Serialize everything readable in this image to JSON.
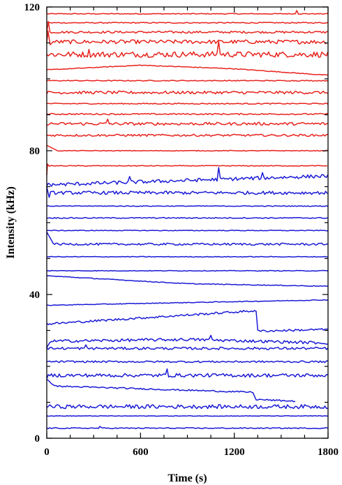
{
  "chart_data": {
    "type": "line",
    "title": "",
    "xlabel": "Time (s)",
    "ylabel": "Intensity (kHz)",
    "xlim": [
      0,
      1800
    ],
    "ylim": [
      0,
      120
    ],
    "xticks": [
      0,
      600,
      1200,
      1800
    ],
    "xtick_labels": [
      "0",
      "600",
      "1200",
      "1800"
    ],
    "yticks": [
      0,
      40,
      80,
      120
    ],
    "ytick_labels": [
      "0",
      "40",
      "80",
      "120"
    ],
    "grid": false,
    "legend": "none",
    "colors": {
      "red": "#e8231d",
      "blue": "#1a1ad6",
      "axis": "#000000"
    },
    "series": [
      {
        "color": "red",
        "base": 118.1,
        "noise": 0.12,
        "x_end": 1800,
        "spikes": [
          [
            1600,
            0.9
          ]
        ]
      },
      {
        "color": "red",
        "base": 115.6,
        "noise": 0.15,
        "x_end": 1800
      },
      {
        "color": "red",
        "base": 113.0,
        "noise": 0.3,
        "x_end": 1800,
        "start": [
          [
            0,
            112.9
          ],
          [
            10,
            116.0
          ]
        ]
      },
      {
        "color": "red",
        "base": 110.3,
        "noise": 0.55,
        "x_end": 1800,
        "start": [
          [
            0,
            110.0
          ],
          [
            8,
            113.3
          ],
          [
            22,
            109.5
          ]
        ]
      },
      {
        "color": "red",
        "base": 106.8,
        "noise": 0.8,
        "x_end": 1800,
        "spikes": [
          [
            1100,
            3.6
          ],
          [
            270,
            1.4
          ]
        ]
      },
      {
        "color": "red",
        "base": 102.5,
        "noise": 0.1,
        "x_end": 1800,
        "points": [
          [
            0,
            102.5
          ],
          [
            600,
            103.8
          ],
          [
            1200,
            102.8
          ],
          [
            1800,
            101.0
          ]
        ]
      },
      {
        "color": "red",
        "base": 99.5,
        "noise": 0.12,
        "x_end": 1800
      },
      {
        "color": "red",
        "base": 96.2,
        "noise": 0.4,
        "x_end": 1800
      },
      {
        "color": "red",
        "base": 93.1,
        "noise": 0.15,
        "x_end": 1800
      },
      {
        "color": "red",
        "base": 90.2,
        "noise": 0.2,
        "x_end": 1800
      },
      {
        "color": "red",
        "base": 87.5,
        "noise": 0.4,
        "x_end": 1800,
        "spikes": [
          [
            390,
            1.3
          ]
        ]
      },
      {
        "color": "red",
        "base": 84.3,
        "noise": 0.3,
        "x_end": 1800
      },
      {
        "color": "red",
        "base": 80.0,
        "noise": 0.1,
        "x_end": 1800,
        "start": [
          [
            0,
            81.5
          ],
          [
            60,
            80.2
          ]
        ]
      },
      {
        "color": "red",
        "base": 75.8,
        "noise": 0.1,
        "x_end": 1800,
        "start": [
          [
            0,
            73.2
          ],
          [
            5,
            76.3
          ]
        ]
      },
      {
        "color": "blue",
        "base": 71.8,
        "noise": 0.5,
        "x_end": 1800,
        "points": [
          [
            0,
            70.5
          ],
          [
            1800,
            73.0
          ]
        ],
        "spikes": [
          [
            1100,
            3.3
          ],
          [
            530,
            1.6
          ],
          [
            1380,
            1.5
          ]
        ]
      },
      {
        "color": "blue",
        "base": 68.3,
        "noise": 0.45,
        "x_end": 1800,
        "start": [
          [
            0,
            70.0
          ],
          [
            15,
            67.0
          ]
        ]
      },
      {
        "color": "blue",
        "base": 64.6,
        "noise": 0.1,
        "x_end": 1800
      },
      {
        "color": "blue",
        "base": 61.3,
        "noise": 0.15,
        "x_end": 1800
      },
      {
        "color": "blue",
        "base": 57.8,
        "noise": 0.1,
        "x_end": 1800
      },
      {
        "color": "blue",
        "base": 54.0,
        "noise": 0.3,
        "x_end": 1800,
        "start": [
          [
            0,
            57.4
          ],
          [
            40,
            54.3
          ]
        ]
      },
      {
        "color": "blue",
        "base": 50.5,
        "noise": 0.1,
        "x_end": 1800
      },
      {
        "color": "blue",
        "base": 46.6,
        "noise": 0.1,
        "x_end": 1800
      },
      {
        "color": "blue",
        "base": 42.5,
        "noise": 0.1,
        "x_end": 1800,
        "points": [
          [
            0,
            45.2
          ],
          [
            900,
            43.0
          ],
          [
            1800,
            42.3
          ]
        ]
      },
      {
        "color": "blue",
        "base": 38.3,
        "noise": 0.1,
        "x_end": 1800,
        "points": [
          [
            0,
            37.0
          ],
          [
            1800,
            38.5
          ]
        ]
      },
      {
        "color": "blue",
        "base": 33.0,
        "noise": 0.3,
        "x_end": 1800,
        "points": [
          [
            0,
            31.8
          ],
          [
            1340,
            35.5
          ],
          [
            1345,
            29.8
          ],
          [
            1800,
            30.3
          ]
        ]
      },
      {
        "color": "blue",
        "base": 27.5,
        "noise": 0.4,
        "x_end": 1800,
        "points": [
          [
            0,
            24.8
          ],
          [
            20,
            27.0
          ],
          [
            900,
            27.5
          ],
          [
            1800,
            26.5
          ]
        ],
        "spikes": [
          [
            1050,
            1.3
          ]
        ]
      },
      {
        "color": "blue",
        "base": 25.0,
        "noise": 0.35,
        "x_end": 1800,
        "spikes": [
          [
            250,
            1.0
          ]
        ]
      },
      {
        "color": "blue",
        "base": 21.3,
        "noise": 0.25,
        "x_end": 1800
      },
      {
        "color": "blue",
        "base": 17.5,
        "noise": 0.5,
        "x_end": 1800,
        "start": [
          [
            0,
            16.5
          ]
        ],
        "spikes": [
          [
            770,
            1.8
          ]
        ]
      },
      {
        "color": "blue",
        "base": 14.0,
        "noise": 0.2,
        "x_end": 1590,
        "points": [
          [
            0,
            16.2
          ],
          [
            60,
            14.5
          ],
          [
            1320,
            12.8
          ],
          [
            1335,
            10.8
          ],
          [
            1590,
            10.3
          ]
        ]
      },
      {
        "color": "blue",
        "base": 8.8,
        "noise": 0.55,
        "x_end": 1800
      },
      {
        "color": "blue",
        "base": 6.2,
        "noise": 0.08,
        "x_end": 1800
      },
      {
        "color": "blue",
        "base": 2.8,
        "noise": 0.15,
        "x_end": 1800,
        "spikes": [
          [
            340,
            0.5
          ]
        ]
      }
    ]
  }
}
